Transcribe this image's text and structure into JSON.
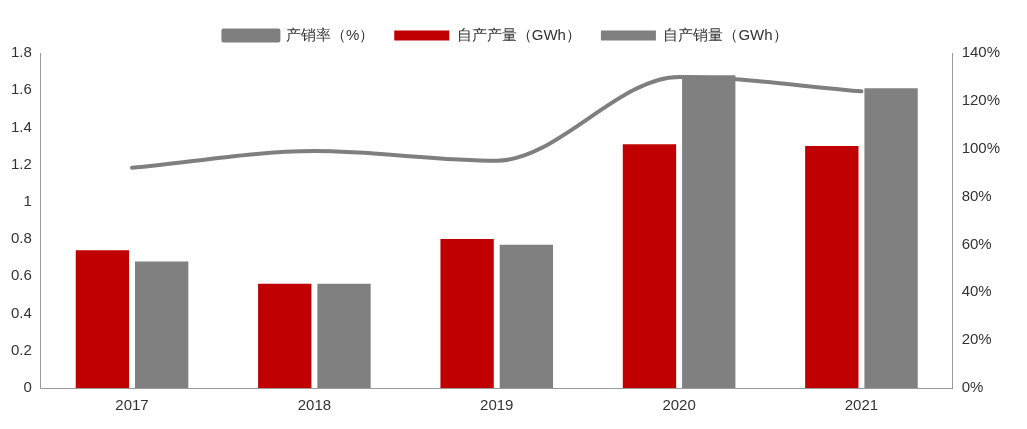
{
  "chart_data": {
    "type": "bar",
    "categories": [
      "2017",
      "2018",
      "2019",
      "2020",
      "2021"
    ],
    "series": [
      {
        "name": "自产产量（GWh）",
        "color": "#c00000",
        "values": [
          0.74,
          0.56,
          0.8,
          1.31,
          1.3
        ]
      },
      {
        "name": "自产销量（GWh）",
        "color": "#808080",
        "values": [
          0.68,
          0.56,
          0.77,
          1.68,
          1.61
        ]
      },
      {
        "name": "产销率（%）",
        "type": "line",
        "axis": "y2",
        "color": "#7f7f7f",
        "values": [
          92,
          99,
          95,
          130,
          124
        ]
      }
    ],
    "ylim": [
      0,
      1.8
    ],
    "yticks": [
      0,
      0.2,
      0.4,
      0.6,
      0.8,
      1,
      1.2,
      1.4,
      1.6,
      1.8
    ],
    "y2lim": [
      0,
      140
    ],
    "y2ticks": [
      {
        "value": 0,
        "label": "0%"
      },
      {
        "value": 20,
        "label": "20%"
      },
      {
        "value": 40,
        "label": "40%"
      },
      {
        "value": 60,
        "label": "60%"
      },
      {
        "value": 80,
        "label": "80%"
      },
      {
        "value": 100,
        "label": "100%"
      },
      {
        "value": 120,
        "label": "120%"
      },
      {
        "value": 140,
        "label": "140%"
      }
    ],
    "grid": false,
    "legend": "top",
    "marker": "none",
    "line_style": "solid"
  }
}
